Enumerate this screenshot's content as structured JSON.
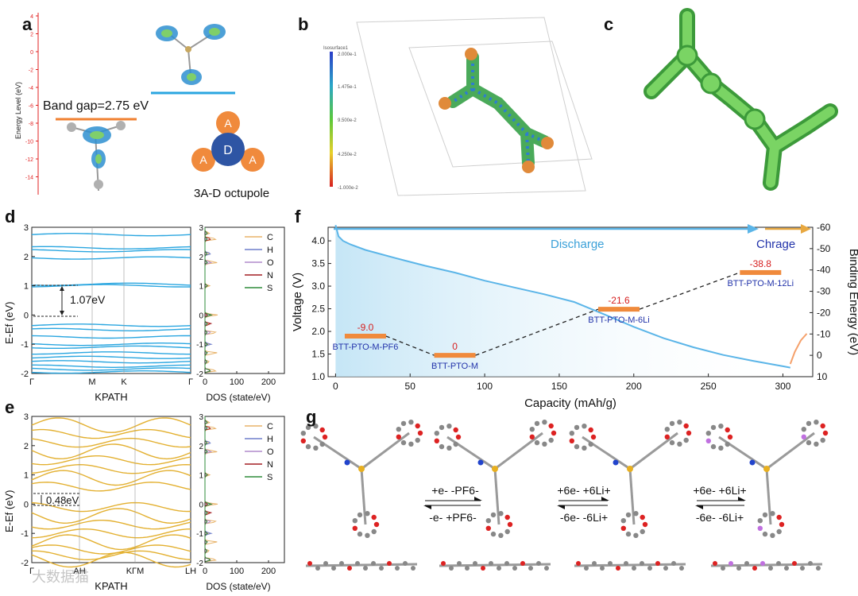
{
  "panel_labels": {
    "a": "a",
    "b": "b",
    "c": "c",
    "d": "d",
    "e": "e",
    "f": "f",
    "g": "g"
  },
  "panel_a": {
    "ylabel": "Energy Level (eV)",
    "yticks": [
      "4",
      "2",
      "0",
      "-2",
      "-4",
      "-6",
      "-8",
      "-10",
      "-12",
      "-14"
    ],
    "band_gap": "Band gap=2.75 eV",
    "node_d": "D",
    "node_a": "A",
    "caption": "3A-D octupole"
  },
  "panel_b": {
    "legend_title": "Isosurface1",
    "legend_values": [
      "2.000e-1",
      "1.475e-1",
      "9.500e-2",
      "4.250e-2",
      "-1.000e-2"
    ]
  },
  "panel_d": {
    "ylabel": "E-Ef (eV)",
    "xlabel": "KPATH",
    "kpoints": [
      "Γ",
      "M",
      "K",
      "Γ"
    ],
    "yticks": [
      "3",
      "2",
      "1",
      "0",
      "-1",
      "-2"
    ],
    "gap_label": "1.07eV",
    "dos_xlabel": "DOS (state/eV)",
    "dos_xticks": [
      "0",
      "100",
      "200"
    ],
    "legend": [
      "C",
      "H",
      "O",
      "N",
      "S"
    ]
  },
  "panel_e": {
    "ylabel": "E-Ef (eV)",
    "xlabel": "KPATH",
    "kpoints": [
      "Γ",
      "AH",
      "KΓM",
      "LH"
    ],
    "yticks": [
      "3",
      "2",
      "1",
      "0",
      "-1",
      "-2"
    ],
    "gap_label": "0.48eV",
    "dos_xlabel": "DOS (state/eV)",
    "dos_xticks": [
      "0",
      "100",
      "200"
    ],
    "legend": [
      "C",
      "H",
      "O",
      "N",
      "S"
    ]
  },
  "legend_colors": {
    "C": "#e8b36a",
    "H": "#6f7fcc",
    "O": "#b08acb",
    "N": "#a31f24",
    "S": "#2e8b3a"
  },
  "chart_data": {
    "type": "line",
    "title": "",
    "xlabel": "Capacity (mAh/g)",
    "ylabel": "Voltage (V)",
    "y2label": "Binding Energy (eV)",
    "xlim": [
      -5,
      320
    ],
    "ylim": [
      1.0,
      4.3
    ],
    "y2lim": [
      10,
      -60
    ],
    "xticks": [
      0,
      50,
      100,
      150,
      200,
      250,
      300
    ],
    "yticks": [
      1.0,
      1.5,
      2.0,
      2.5,
      3.0,
      3.5,
      4.0
    ],
    "y2ticks": [
      10,
      0,
      -10,
      -20,
      -30,
      -40,
      -50,
      -60
    ],
    "discharge_label": "Discharge",
    "charge_label": "Chrage",
    "series": [
      {
        "name": "Discharge",
        "x": [
          0,
          2,
          5,
          10,
          20,
          40,
          60,
          80,
          100,
          120,
          140,
          160,
          180,
          200,
          220,
          240,
          260,
          280,
          300,
          305
        ],
        "y": [
          4.35,
          4.1,
          4.0,
          3.92,
          3.8,
          3.62,
          3.45,
          3.3,
          3.12,
          2.97,
          2.82,
          2.65,
          2.38,
          2.1,
          1.85,
          1.65,
          1.48,
          1.35,
          1.23,
          1.2
        ]
      },
      {
        "name": "Charge",
        "x": [
          305,
          308,
          312,
          316
        ],
        "y": [
          1.28,
          1.55,
          1.8,
          1.95
        ]
      }
    ],
    "states": [
      {
        "name": "BTT-PTO-M-PF6",
        "capacity": 20,
        "energy": -9.0,
        "energy_label": "-9.0"
      },
      {
        "name": "BTT-PTO-M",
        "capacity": 80,
        "energy": 0,
        "energy_label": "0"
      },
      {
        "name": "BTT-PTO-M-6Li",
        "capacity": 190,
        "energy": -21.6,
        "energy_label": "-21.6"
      },
      {
        "name": "BTT-PTO-M-12Li",
        "capacity": 285,
        "energy": -38.8,
        "energy_label": "-38.8"
      }
    ]
  },
  "panel_g": {
    "step1_top": "+e- -PF6-",
    "step1_bottom": "-e- +PF6-",
    "step2_top": "+6e- +6Li+",
    "step2_bottom": "-6e- -6Li+",
    "step3_top": "+6e- +6Li+",
    "step3_bottom": "-6e- -6Li+"
  },
  "watermark": "大数据猫"
}
